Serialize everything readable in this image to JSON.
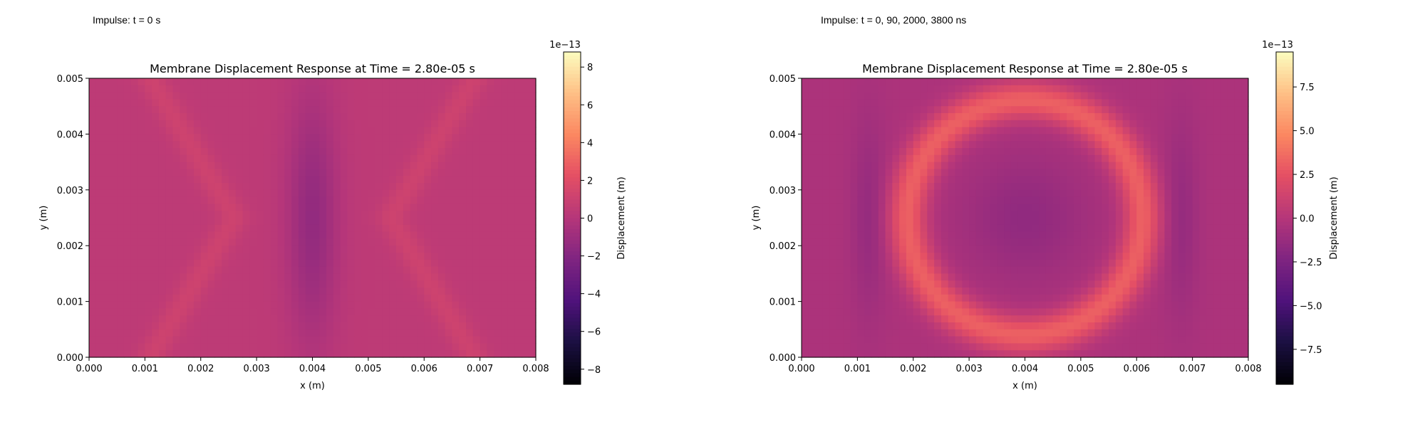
{
  "panels": [
    {
      "caption": "Impulse: t = 0 s",
      "chart_data": {
        "type": "heatmap",
        "title": "Membrane Displacement Response at Time = 2.80e-05 s",
        "xlabel": "x (m)",
        "ylabel": "y (m)",
        "xlim": [
          0,
          0.008
        ],
        "ylim": [
          0,
          0.005
        ],
        "xticks": [
          "0.000",
          "0.001",
          "0.002",
          "0.003",
          "0.004",
          "0.005",
          "0.006",
          "0.007",
          "0.008"
        ],
        "yticks": [
          "0.000",
          "0.001",
          "0.002",
          "0.003",
          "0.004",
          "0.005"
        ],
        "colormap": "magma",
        "colorbar": {
          "label": "Displacement (m)",
          "multiplier": "1e−13",
          "range": [
            -8.8,
            8.8
          ],
          "ticks": [
            -8,
            -6,
            -4,
            -2,
            0,
            2,
            4,
            6,
            8
          ],
          "ticklabels": [
            "−8",
            "−6",
            "−4",
            "−2",
            "0",
            "2",
            "4",
            "6",
            "8"
          ]
        },
        "field_description": [
          "negative vertical band around x = 0.004",
          "positive V-shaped wavefronts either side"
        ],
        "grid": false
      }
    },
    {
      "caption": "Impulse: t = 0, 90, 2000, 3800 ns",
      "chart_data": {
        "type": "heatmap",
        "title": "Membrane Displacement Response at Time = 2.80e-05 s",
        "xlabel": "x (m)",
        "ylabel": "y (m)",
        "xlim": [
          0,
          0.008
        ],
        "ylim": [
          0,
          0.005
        ],
        "xticks": [
          "0.000",
          "0.001",
          "0.002",
          "0.003",
          "0.004",
          "0.005",
          "0.006",
          "0.007",
          "0.008"
        ],
        "yticks": [
          "0.000",
          "0.001",
          "0.002",
          "0.003",
          "0.004",
          "0.005"
        ],
        "colormap": "magma",
        "colorbar": {
          "label": "Displacement (m)",
          "multiplier": "1e−13",
          "range": [
            -9.5,
            9.5
          ],
          "ticks": [
            -7.5,
            -5.0,
            -2.5,
            0.0,
            2.5,
            5.0,
            7.5
          ],
          "ticklabels": [
            "−7.5",
            "−5.0",
            "−2.5",
            "0.0",
            "2.5",
            "5.0",
            "7.5"
          ]
        },
        "field_description": [
          "positive circular ring centred at (0.004, 0.0025)",
          "negative centre and negative bands near x = 0.0012 and x = 0.0068"
        ],
        "grid": false
      }
    }
  ]
}
